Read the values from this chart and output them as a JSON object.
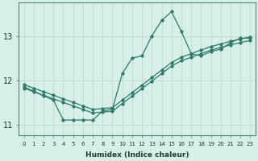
{
  "xlabel": "Humidex (Indice chaleur)",
  "x_values": [
    0,
    1,
    2,
    3,
    4,
    5,
    6,
    7,
    8,
    9,
    10,
    11,
    12,
    13,
    14,
    15,
    16,
    17,
    18,
    19,
    20,
    21,
    22,
    23
  ],
  "main_y": [
    11.85,
    11.75,
    11.65,
    11.55,
    11.1,
    11.1,
    11.1,
    11.1,
    11.3,
    11.35,
    12.15,
    12.5,
    12.55,
    13.0,
    13.35,
    13.55,
    13.1,
    12.6,
    12.55,
    12.65,
    12.7,
    12.85,
    12.95,
    12.95
  ],
  "upper_line_y": [
    11.9,
    11.82,
    11.74,
    11.66,
    11.58,
    11.5,
    11.42,
    11.34,
    11.36,
    11.38,
    11.55,
    11.72,
    11.89,
    12.06,
    12.23,
    12.4,
    12.52,
    12.6,
    12.68,
    12.76,
    12.82,
    12.88,
    12.93,
    12.98
  ],
  "lower_line_y": [
    11.82,
    11.74,
    11.66,
    11.58,
    11.5,
    11.42,
    11.34,
    11.26,
    11.28,
    11.3,
    11.47,
    11.64,
    11.81,
    11.98,
    12.15,
    12.32,
    12.44,
    12.52,
    12.6,
    12.68,
    12.74,
    12.8,
    12.85,
    12.9
  ],
  "line_color": "#2d7a6e",
  "bg_color": "#d8eee8",
  "grid_color": "#c0d8d0",
  "ylim": [
    10.75,
    13.75
  ],
  "yticks": [
    11,
    12,
    13
  ],
  "xlim": [
    -0.5,
    23.5
  ]
}
